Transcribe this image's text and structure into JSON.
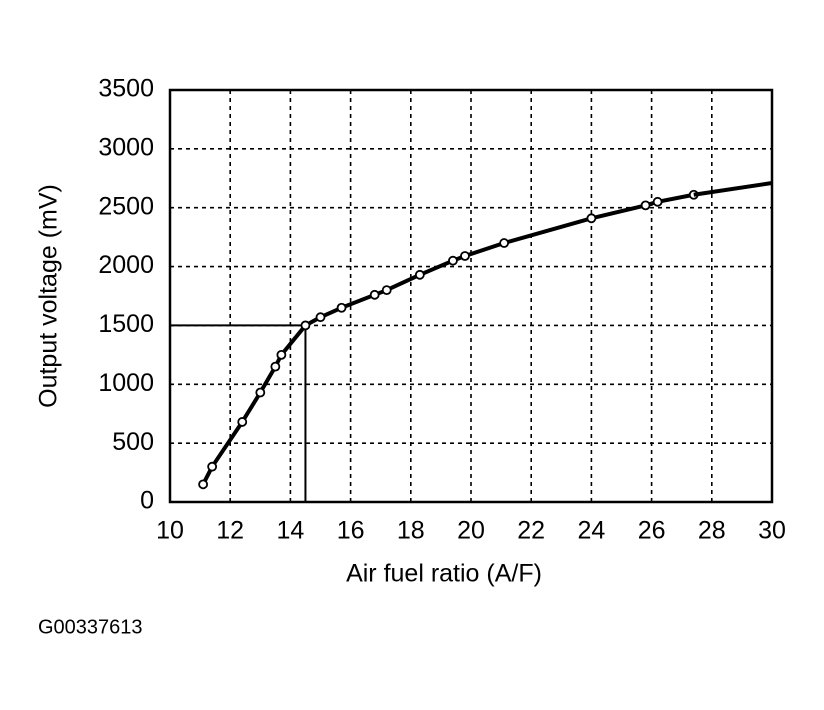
{
  "chart_data": {
    "type": "line",
    "x_label": "Air fuel ratio (A/F)",
    "y_label": "Output voltage (mV)",
    "footnote": "G00337613",
    "xlim": [
      10,
      30
    ],
    "xticks": [
      10,
      12,
      14,
      16,
      18,
      20,
      22,
      24,
      26,
      28,
      30
    ],
    "ylim": [
      0,
      3500
    ],
    "yticks": [
      0,
      500,
      1000,
      1500,
      2000,
      2500,
      3000,
      3500
    ],
    "grid": true,
    "color": "#000000",
    "series": [
      {
        "markers": true,
        "x": [
          11.1,
          11.4,
          12.4,
          13.0,
          13.5,
          13.7,
          14.5,
          15.0,
          15.7,
          16.8,
          17.2,
          18.3,
          19.4,
          19.8,
          21.1,
          24.0,
          25.8,
          26.2,
          27.4
        ],
        "values": [
          150,
          300,
          680,
          930,
          1150,
          1250,
          1500,
          1570,
          1650,
          1760,
          1800,
          1930,
          2050,
          2090,
          2200,
          2410,
          2520,
          2550,
          2610
        ]
      },
      {
        "markers": false,
        "continues": true,
        "x": [
          30
        ],
        "values": [
          2710
        ]
      }
    ],
    "reference": {
      "x": 14.5,
      "y": 1500
    }
  }
}
